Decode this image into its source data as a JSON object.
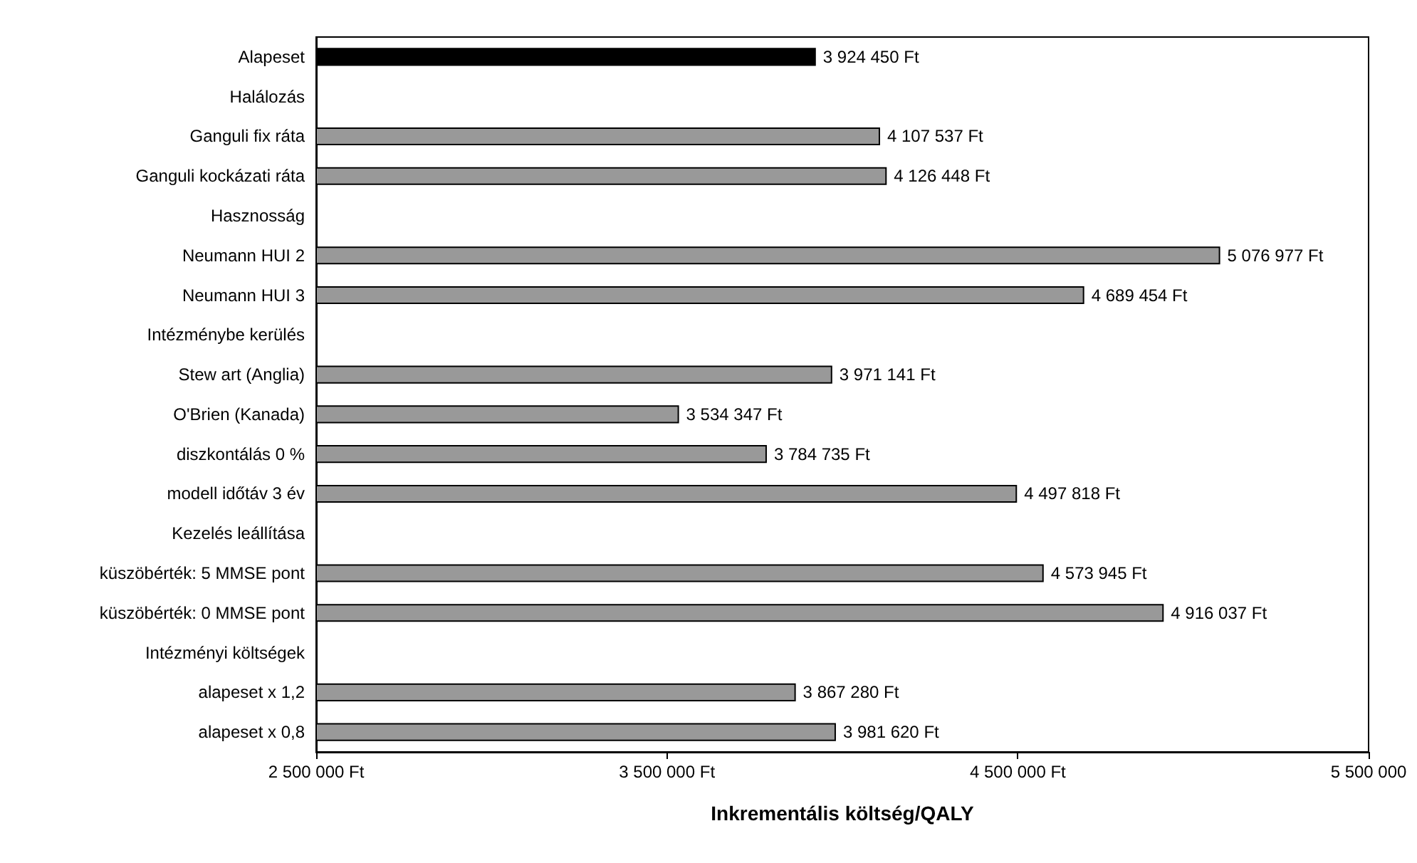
{
  "chart_data": {
    "type": "bar",
    "orientation": "horizontal",
    "xlabel": "Inkrementális költség/QALY",
    "categories": [
      "Alapeset",
      "Halálozás",
      "Ganguli fix ráta",
      "Ganguli kockázati ráta",
      "Hasznosság",
      "Neumann HUI 2",
      "Neumann HUI 3",
      "Intézménybe kerülés",
      "Stew art (Anglia)",
      "O'Brien (Kanada)",
      "diszkontálás 0 %",
      "modell időtáv 3 év",
      "Kezelés leállítása",
      "küszöbérték: 5 MMSE pont",
      "küszöbérték: 0 MMSE pont",
      "Intézményi költségek",
      "alapeset x 1,2",
      "alapeset x 0,8"
    ],
    "values": [
      3924450,
      null,
      4107537,
      4126448,
      null,
      5076977,
      4689454,
      null,
      3971141,
      3534347,
      3784735,
      4497818,
      null,
      4573945,
      4916037,
      null,
      3867280,
      3981620
    ],
    "value_labels": [
      "3 924 450 Ft",
      null,
      "4 107 537 Ft",
      "4 126 448 Ft",
      null,
      "5 076 977 Ft",
      "4 689 454 Ft",
      null,
      "3 971 141 Ft",
      "3 534 347 Ft",
      "3 784 735 Ft",
      "4 497 818 Ft",
      null,
      "4 573 945 Ft",
      "4 916 037 Ft",
      null,
      "3 867 280 Ft",
      "3 981 620 Ft"
    ],
    "colors": [
      "#000000",
      "#999999",
      "#999999",
      "#999999",
      "#999999",
      "#999999",
      "#999999",
      "#999999",
      "#999999",
      "#999999",
      "#999999",
      "#999999",
      "#999999",
      "#999999",
      "#999999",
      "#999999",
      "#999999",
      "#999999"
    ],
    "xlim": [
      2500000,
      5500000
    ],
    "xticks": [
      {
        "value": 2500000,
        "label": "2 500 000 Ft"
      },
      {
        "value": 3500000,
        "label": "3 500 000 Ft"
      },
      {
        "value": 4500000,
        "label": "4 500 000 Ft"
      },
      {
        "value": 5500000,
        "label": "5 500 000"
      }
    ],
    "grid": false
  }
}
